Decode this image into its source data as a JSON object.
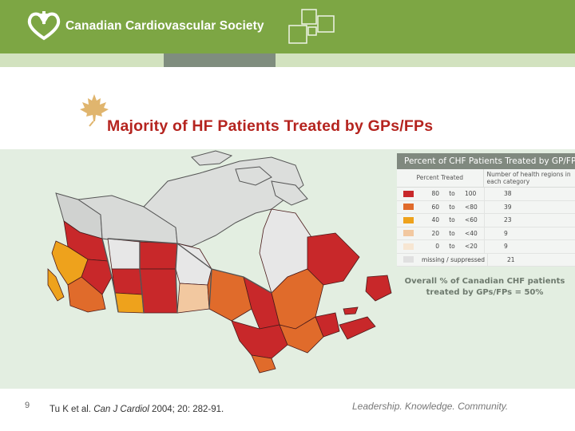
{
  "header": {
    "org_name": "Canadian Cardiovascular Society"
  },
  "slide": {
    "title": "Majority of HF Patients Treated by GPs/FPs",
    "number": "9",
    "citation_authors": "Tu K et al. ",
    "citation_journal": "Can J Cardiol",
    "citation_rest": " 2004; 20: 282-91.",
    "tagline": "Leadership. Knowledge. Community."
  },
  "legend": {
    "title": "Percent of CHF Patients Treated by GP/FP",
    "col_percent": "Percent Treated",
    "col_regions": "Number of health regions in each category",
    "rows": [
      {
        "lo": "80",
        "to": "to",
        "hi": "100",
        "count": "38",
        "color": "#c8282a"
      },
      {
        "lo": "60",
        "to": "to",
        "hi": "<80",
        "count": "39",
        "color": "#e06b2b"
      },
      {
        "lo": "40",
        "to": "to",
        "hi": "<60",
        "count": "23",
        "color": "#eea21c"
      },
      {
        "lo": "20",
        "to": "to",
        "hi": "<40",
        "count": "9",
        "color": "#f2c8a0"
      },
      {
        "lo": "0",
        "to": "to",
        "hi": "<20",
        "count": "9",
        "color": "#f7e6d2"
      },
      {
        "missing": "missing / suppressed",
        "count": "21",
        "color": "#e0e0e0"
      }
    ]
  },
  "overall": {
    "line1": "Overall % of Canadian CHF patients",
    "line2": "treated by GPs/FPs = 50%"
  },
  "colors": {
    "brand_green": "#7da644",
    "title_red": "#b5241f",
    "map_background": "#e3eee1"
  }
}
